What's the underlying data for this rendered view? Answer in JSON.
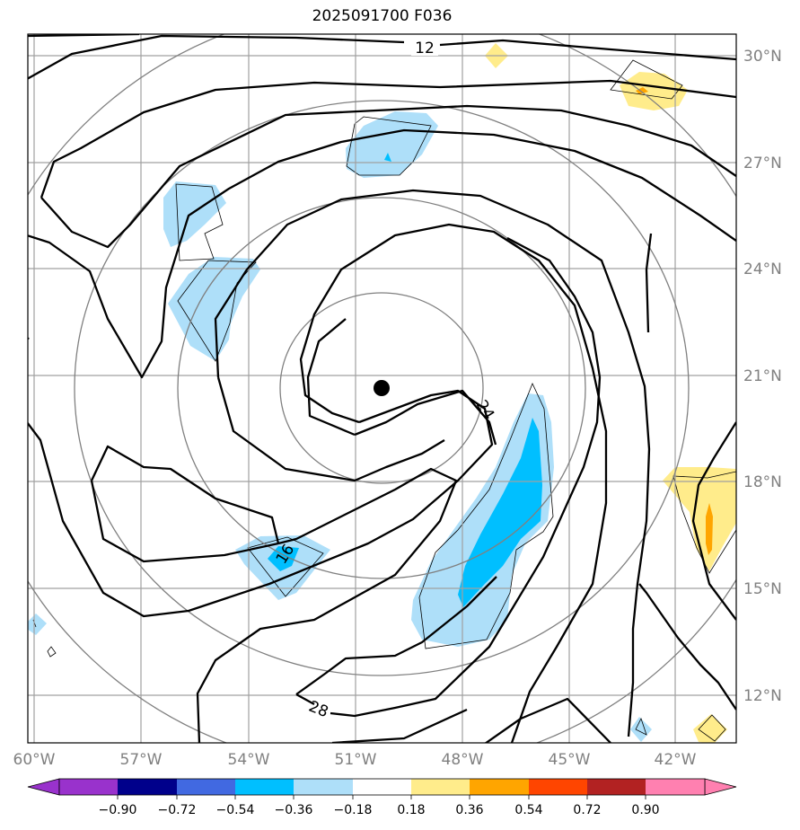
{
  "title": "2025091700 F036",
  "map": {
    "lon_range": [
      -60,
      -40
    ],
    "lat_range": [
      10.5,
      30.5
    ],
    "lon_ticks": [
      "60°W",
      "57°W",
      "54°W",
      "51°W",
      "48°W",
      "45°W",
      "42°W"
    ],
    "lat_ticks": [
      "30°N",
      "27°N",
      "24°N",
      "21°N",
      "18°N",
      "15°N",
      "12°N"
    ],
    "center_marker": {
      "lon": -50.75,
      "lat": 20.6
    },
    "contour_labels": [
      "12",
      "16",
      "24",
      "28"
    ],
    "colors": {
      "gridline": "#a0a0a0",
      "contour": "#000000",
      "range_ring": "#808080",
      "light_blue": "#aedff9",
      "deep_sky_blue": "#00bfff",
      "light_yellow": "#ffec8b",
      "orange": "#ffa500"
    }
  },
  "colorbar": {
    "ticks": [
      "−0.90",
      "−0.72",
      "−0.54",
      "−0.36",
      "−0.18",
      "0.18",
      "0.36",
      "0.54",
      "0.72",
      "0.90"
    ],
    "colors": [
      "#9932cc",
      "#00008b",
      "#4169e1",
      "#00bfff",
      "#aedff9",
      "#ffffff",
      "#ffec8b",
      "#ffa500",
      "#ff4500",
      "#b22222",
      "#ff80b0"
    ]
  }
}
